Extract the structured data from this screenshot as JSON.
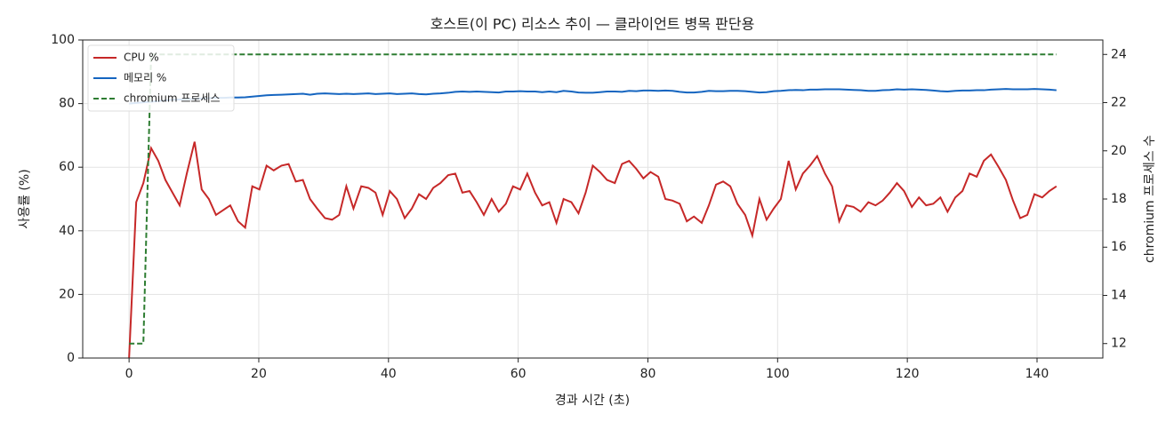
{
  "chart_data": {
    "type": "line",
    "title": "호스트(이 PC) 리소스 추이 — 클라이언트 병목 판단용",
    "xlabel": "경과 시간 (초)",
    "ylabel": "사용률 (%)",
    "y2label": "chromium 프로세스 수",
    "xlim": [
      -7.15,
      150.15
    ],
    "ylim": [
      0,
      100
    ],
    "y2lim": [
      11.4,
      24.6
    ],
    "xticks": [
      0,
      20,
      40,
      60,
      80,
      100,
      120,
      140
    ],
    "yticks": [
      0,
      20,
      40,
      60,
      80,
      100
    ],
    "y2ticks": [
      12,
      14,
      16,
      18,
      20,
      22,
      24
    ],
    "grid": true,
    "legend": "upper left",
    "x": [
      0,
      1.1,
      2.2,
      3.4,
      4.5,
      5.6,
      6.7,
      7.8,
      8.9,
      10.1,
      11.2,
      12.3,
      13.4,
      14.5,
      15.6,
      16.8,
      17.9,
      19.0,
      20.1,
      21.2,
      22.3,
      23.5,
      24.6,
      25.7,
      26.8,
      27.9,
      29.0,
      30.2,
      31.3,
      32.4,
      33.5,
      34.6,
      35.8,
      36.9,
      38.0,
      39.1,
      40.2,
      41.3,
      42.5,
      43.6,
      44.7,
      45.8,
      46.9,
      48.0,
      49.2,
      50.3,
      51.4,
      52.5,
      53.6,
      54.7,
      55.9,
      57.0,
      58.1,
      59.2,
      60.3,
      61.4,
      62.6,
      63.7,
      64.8,
      65.9,
      67.0,
      68.2,
      69.3,
      70.4,
      71.5,
      72.6,
      73.7,
      74.9,
      76.0,
      77.1,
      78.2,
      79.3,
      80.4,
      81.6,
      82.7,
      83.8,
      84.9,
      86.0,
      87.1,
      88.3,
      89.4,
      90.5,
      91.6,
      92.7,
      93.8,
      95.0,
      96.1,
      97.2,
      98.3,
      99.4,
      100.5,
      101.7,
      102.8,
      103.9,
      105.0,
      106.1,
      107.3,
      108.4,
      109.5,
      110.6,
      111.7,
      112.8,
      114.0,
      115.1,
      116.2,
      117.3,
      118.4,
      119.5,
      120.7,
      121.8,
      122.9,
      124.0,
      125.1,
      126.2,
      127.4,
      128.5,
      129.6,
      130.7,
      131.8,
      132.9,
      134.1,
      135.2,
      136.3,
      137.4,
      138.5,
      139.6,
      140.8,
      141.9,
      143.0
    ],
    "series": [
      {
        "name": "CPU %",
        "color": "#c62828",
        "dash": false,
        "values": [
          0,
          49,
          55,
          66,
          62,
          56,
          52,
          48,
          58,
          68,
          53,
          50,
          45,
          46.5,
          48,
          43,
          41,
          54,
          53,
          60.5,
          59,
          60.5,
          61,
          55.5,
          56,
          50,
          47,
          44,
          43.5,
          45,
          54,
          47,
          54,
          53.5,
          52,
          45,
          52.5,
          50,
          44,
          47,
          51.5,
          50,
          53.5,
          55,
          57.5,
          58,
          52,
          52.5,
          49,
          45,
          50,
          46,
          48.5,
          54,
          53,
          58,
          52,
          48,
          49,
          42.5,
          50,
          49,
          45.5,
          52,
          60.5,
          58.5,
          56,
          55,
          61,
          62,
          59.5,
          56.5,
          58.5,
          57,
          50,
          49.5,
          48.5,
          43,
          44.5,
          42.5,
          48,
          54.5,
          55.5,
          54,
          48.5,
          45,
          38.5,
          50,
          43.5,
          47,
          50,
          62,
          53,
          58,
          60.5,
          63.5,
          58,
          54,
          43,
          48,
          47.5,
          46,
          49,
          48,
          49.5,
          52,
          55,
          52.5,
          47.5,
          50.5,
          48,
          48.5,
          50.5,
          46,
          50.5,
          52.5,
          58,
          57,
          62,
          64,
          60,
          56,
          49.5,
          44,
          45,
          51.5,
          50.5,
          52.5,
          54
        ]
      },
      {
        "name": "메모리 %",
        "color": "#1565c0",
        "dash": false,
        "values": [
          80.0,
          80.2,
          80.4,
          80.6,
          80.8,
          81.0,
          81.2,
          81.3,
          81.4,
          81.5,
          81.6,
          81.7,
          81.8,
          81.8,
          81.9,
          81.9,
          82.0,
          82.2,
          82.4,
          82.6,
          82.7,
          82.8,
          82.9,
          83.0,
          83.1,
          82.8,
          83.1,
          83.2,
          83.1,
          83.0,
          83.1,
          83.0,
          83.1,
          83.2,
          83.0,
          83.1,
          83.2,
          83.0,
          83.1,
          83.2,
          83.0,
          82.9,
          83.1,
          83.2,
          83.4,
          83.7,
          83.8,
          83.7,
          83.8,
          83.7,
          83.6,
          83.5,
          83.8,
          83.8,
          83.9,
          83.8,
          83.8,
          83.6,
          83.8,
          83.6,
          84.0,
          83.8,
          83.5,
          83.4,
          83.4,
          83.6,
          83.8,
          83.8,
          83.7,
          84.0,
          83.9,
          84.1,
          84.1,
          84.0,
          84.1,
          84.0,
          83.7,
          83.5,
          83.5,
          83.7,
          84.0,
          83.9,
          83.9,
          84.0,
          84.0,
          83.9,
          83.7,
          83.5,
          83.6,
          83.9,
          84.0,
          84.2,
          84.3,
          84.2,
          84.4,
          84.4,
          84.5,
          84.5,
          84.5,
          84.4,
          84.3,
          84.2,
          84.0,
          84.0,
          84.2,
          84.3,
          84.5,
          84.4,
          84.5,
          84.4,
          84.3,
          84.1,
          83.9,
          83.8,
          84.0,
          84.1,
          84.1,
          84.2,
          84.2,
          84.4,
          84.5,
          84.6,
          84.5,
          84.5,
          84.5,
          84.6,
          84.5,
          84.4,
          84.2
        ]
      },
      {
        "name": "chromium 프로세스",
        "color": "#2e7d32",
        "dash": true,
        "axis": "y2",
        "values": [
          12,
          12,
          12,
          24,
          24,
          24,
          24,
          24,
          24,
          24,
          24,
          24,
          24,
          24,
          24,
          24,
          24,
          24,
          24,
          24,
          24,
          24,
          24,
          24,
          24,
          24,
          24,
          24,
          24,
          24,
          24,
          24,
          24,
          24,
          24,
          24,
          24,
          24,
          24,
          24,
          24,
          24,
          24,
          24,
          24,
          24,
          24,
          24,
          24,
          24,
          24,
          24,
          24,
          24,
          24,
          24,
          24,
          24,
          24,
          24,
          24,
          24,
          24,
          24,
          24,
          24,
          24,
          24,
          24,
          24,
          24,
          24,
          24,
          24,
          24,
          24,
          24,
          24,
          24,
          24,
          24,
          24,
          24,
          24,
          24,
          24,
          24,
          24,
          24,
          24,
          24,
          24,
          24,
          24,
          24,
          24,
          24,
          24,
          24,
          24,
          24,
          24,
          24,
          24,
          24,
          24,
          24,
          24,
          24,
          24,
          24,
          24,
          24,
          24,
          24,
          24,
          24,
          24,
          24,
          24,
          24,
          24,
          24,
          24,
          24,
          24,
          24,
          24,
          24
        ]
      }
    ]
  }
}
